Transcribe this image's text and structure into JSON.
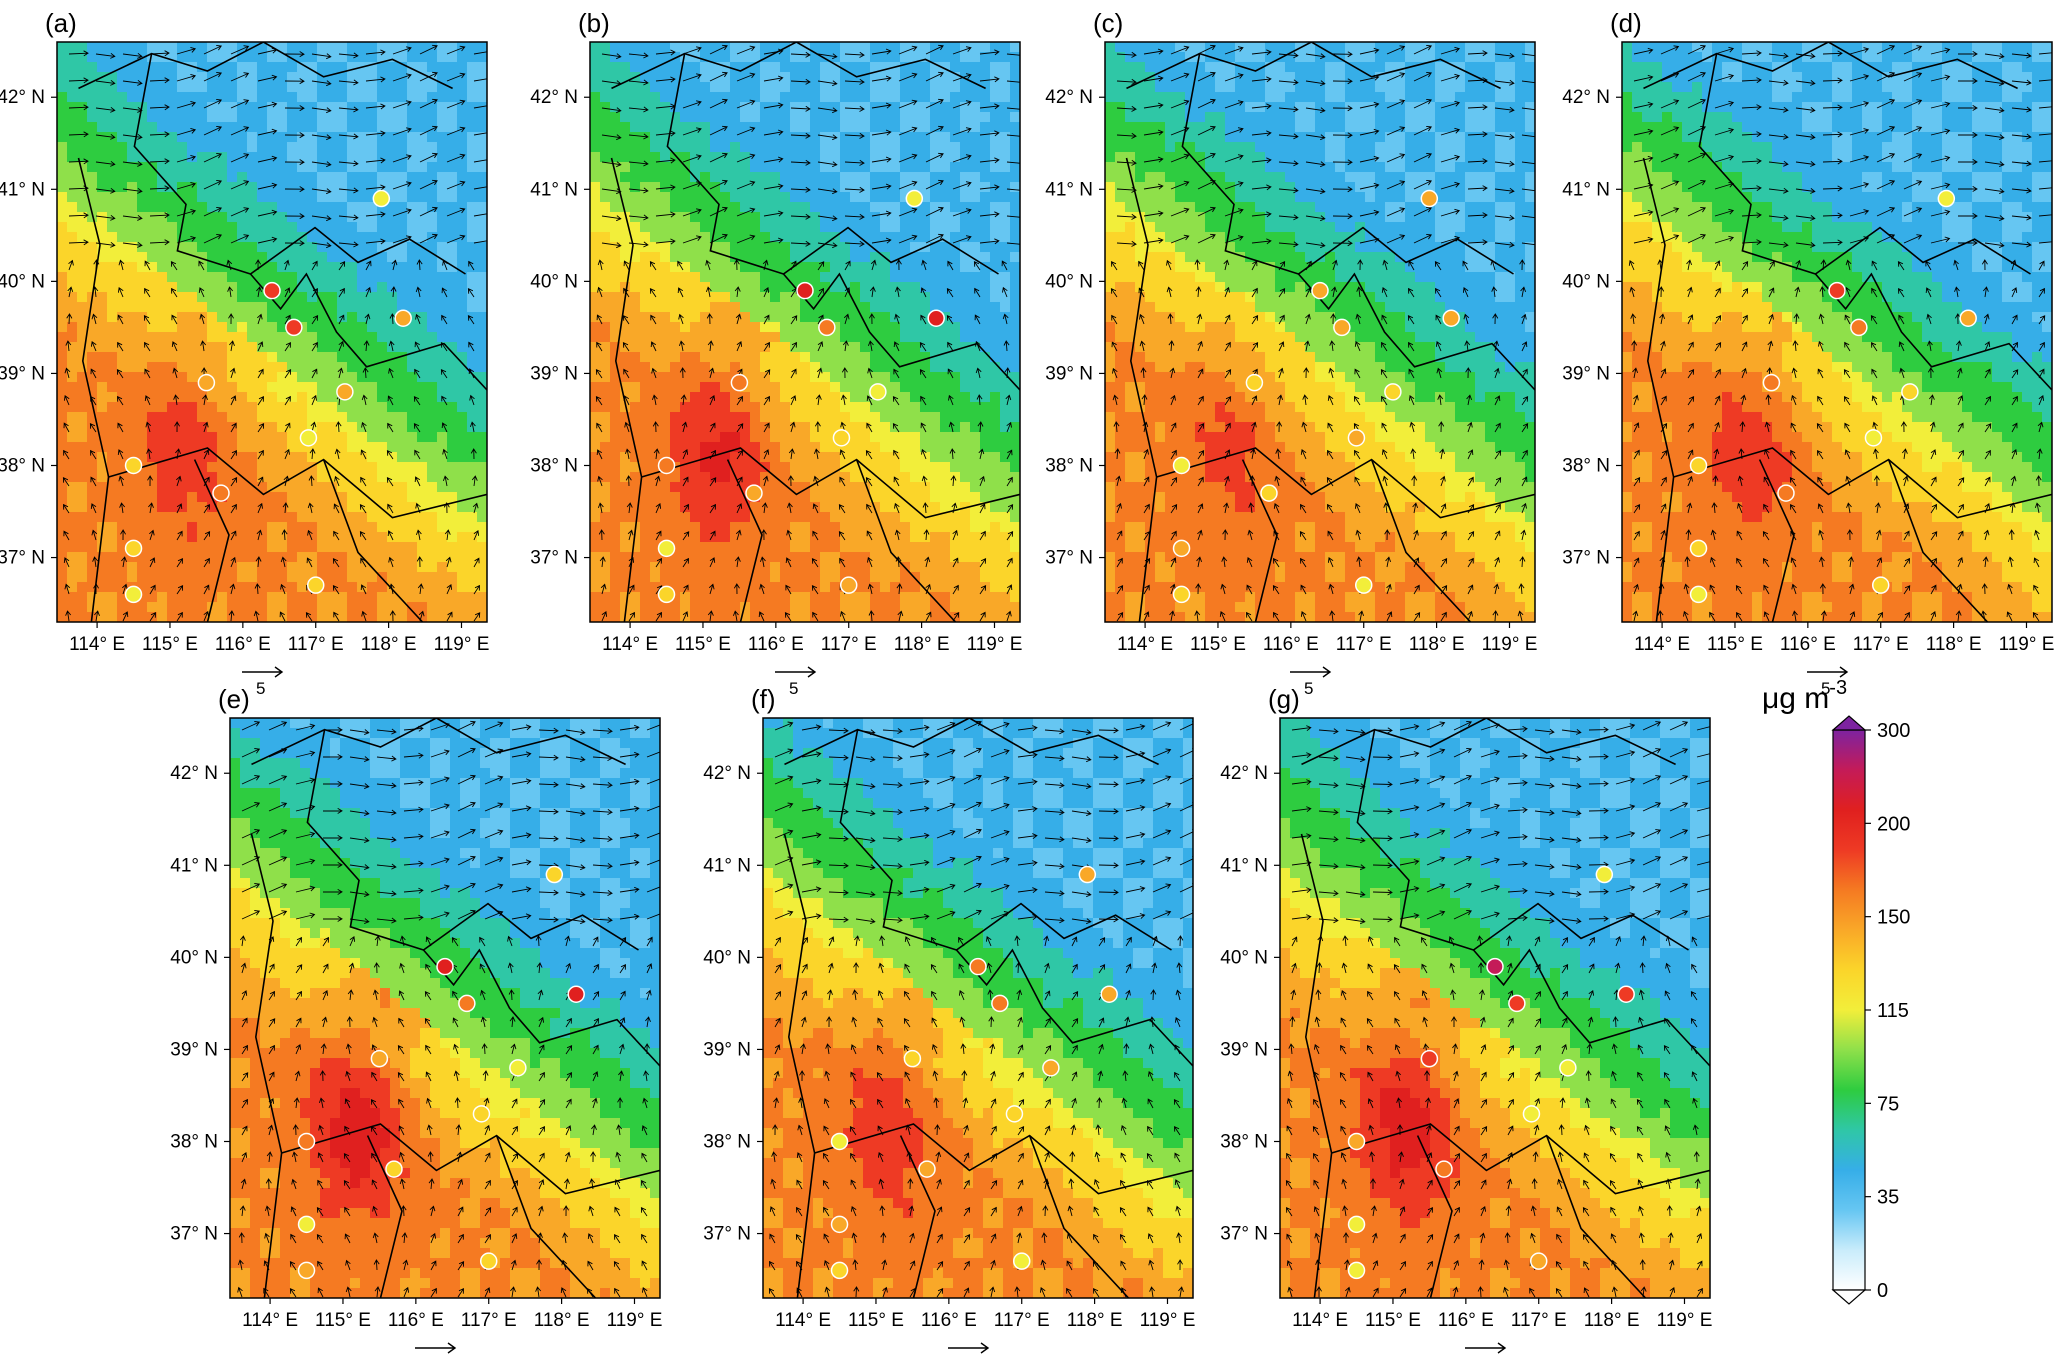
{
  "colorbar": {
    "unit": "μg m",
    "unit_superscript": "-3",
    "ticks": [
      "0",
      "35",
      "75",
      "115",
      "150",
      "200",
      "300"
    ],
    "colors": [
      "#ffffff",
      "#c9ecfb",
      "#66c6f2",
      "#36aee8",
      "#2fc7a6",
      "#2ecc40",
      "#8fe04a",
      "#f2ee3a",
      "#fbd52a",
      "#f9a828",
      "#f57a22",
      "#ee3a24",
      "#e0201f",
      "#c41b58",
      "#7d23a0"
    ]
  },
  "map": {
    "lat_labels": [
      "42° N",
      "41° N",
      "40° N",
      "39° N",
      "38° N",
      "37° N"
    ],
    "lon_labels": [
      "114° E",
      "115° E",
      "116° E",
      "117° E",
      "118° E",
      "119° E"
    ],
    "wind_scale_label": "5"
  },
  "panels": [
    {
      "label": "(a)",
      "intensity": 0.55
    },
    {
      "label": "(b)",
      "intensity": 0.75
    },
    {
      "label": "(c)",
      "intensity": 0.45
    },
    {
      "label": "(d)",
      "intensity": 0.55
    },
    {
      "label": "(e)",
      "intensity": 0.85
    },
    {
      "label": "(f)",
      "intensity": 0.6
    },
    {
      "label": "(g)",
      "intensity": 0.9
    }
  ],
  "stations": [
    {
      "lon": 116.4,
      "lat": 39.9
    },
    {
      "lon": 116.7,
      "lat": 39.5
    },
    {
      "lon": 117.9,
      "lat": 40.9
    },
    {
      "lon": 118.2,
      "lat": 39.6
    },
    {
      "lon": 115.5,
      "lat": 38.9
    },
    {
      "lon": 117.4,
      "lat": 38.8
    },
    {
      "lon": 116.9,
      "lat": 38.3
    },
    {
      "lon": 114.5,
      "lat": 38.0
    },
    {
      "lon": 115.7,
      "lat": 37.7
    },
    {
      "lon": 114.5,
      "lat": 37.1
    },
    {
      "lon": 114.5,
      "lat": 36.6
    },
    {
      "lon": 117.0,
      "lat": 36.7
    }
  ]
}
